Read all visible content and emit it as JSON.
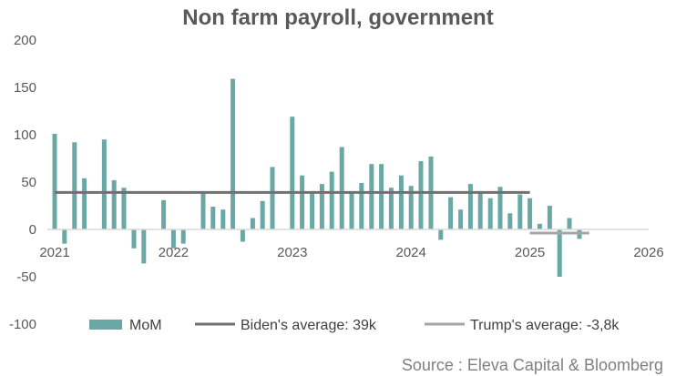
{
  "chart_data": {
    "type": "bar",
    "title": "Non farm payroll, government",
    "source": "Source : Eleva Capital & Bloomberg",
    "ylim": [
      -100,
      200
    ],
    "yticks": [
      "200",
      "150",
      "100",
      "50",
      "0",
      "-50",
      "-100"
    ],
    "ytick_values": [
      200,
      150,
      100,
      50,
      0,
      -50,
      -100
    ],
    "xlim": [
      2021,
      2026
    ],
    "xticks": [
      "2021",
      "2022",
      "2023",
      "2024",
      "2025",
      "2026"
    ],
    "xtick_values": [
      2021,
      2022,
      2023,
      2024,
      2025,
      2026
    ],
    "series": [
      {
        "name": "MoM",
        "color": "#6aa8a6",
        "x": [
          2021.0,
          2021.083,
          2021.167,
          2021.25,
          2021.417,
          2021.5,
          2021.583,
          2021.667,
          2021.75,
          2021.917,
          2022.0,
          2022.083,
          2022.25,
          2022.333,
          2022.417,
          2022.5,
          2022.583,
          2022.667,
          2022.75,
          2022.833,
          2022.917,
          2023.0,
          2023.083,
          2023.167,
          2023.25,
          2023.333,
          2023.417,
          2023.5,
          2023.583,
          2023.667,
          2023.75,
          2023.833,
          2023.917,
          2024.0,
          2024.083,
          2024.167,
          2024.25,
          2024.333,
          2024.417,
          2024.5,
          2024.583,
          2024.667,
          2024.75,
          2024.833,
          2024.917,
          2025.0,
          2025.083,
          2025.167,
          2025.25,
          2025.333,
          2025.417,
          2025.5
        ],
        "values": [
          101,
          -15,
          92,
          54,
          95,
          52,
          44,
          -20,
          -36,
          31,
          -20,
          -15,
          38,
          24,
          21,
          159,
          -13,
          12,
          30,
          66,
          0,
          119,
          57,
          38,
          48,
          61,
          87,
          40,
          49,
          69,
          69,
          44,
          57,
          46,
          72,
          77,
          -11,
          34,
          21,
          48,
          40,
          33,
          45,
          17,
          37,
          33,
          6,
          25,
          -50,
          12,
          -10,
          0
        ]
      },
      {
        "name": "Biden's average: 39k",
        "color": "#707070",
        "value": 39,
        "x_range": [
          2021.0,
          2025.0
        ]
      },
      {
        "name": "Trump's average: -3,8k",
        "color": "#a6a6a6",
        "value": -3.8,
        "x_range": [
          2025.0,
          2025.5
        ]
      }
    ]
  }
}
